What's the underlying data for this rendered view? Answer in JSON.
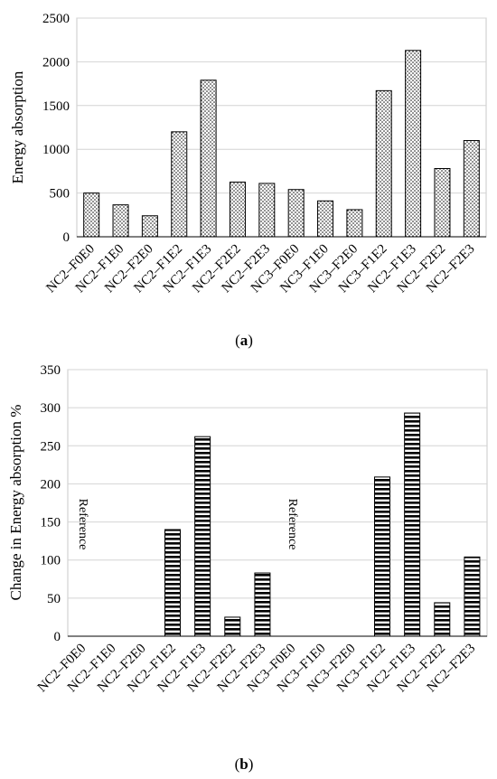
{
  "chart_data": [
    {
      "type": "bar",
      "panel_label": "a",
      "categories": [
        "NC2–F0E0",
        "NC2–F1E0",
        "NC2–F2E0",
        "NC2–F1E2",
        "NC2–F1E3",
        "NC2–F2E2",
        "NC2–F2E3",
        "NC3–F0E0",
        "NC3–F1E0",
        "NC3–F2E0",
        "NC3–F1E2",
        "NC2–F1E3",
        "NC2–F2E2",
        "NC2–F2E3"
      ],
      "values": [
        500,
        365,
        240,
        1200,
        1790,
        625,
        610,
        540,
        410,
        310,
        1670,
        2130,
        780,
        1100
      ],
      "ylabel": "Energy absorption",
      "xlabel": "",
      "ylim": [
        0,
        2500
      ],
      "yticks": [
        0,
        500,
        1000,
        1500,
        2000,
        2500
      ],
      "grid": true,
      "pattern": "dotted"
    },
    {
      "type": "bar",
      "panel_label": "b",
      "categories": [
        "NC2–F0E0",
        "NC2–F1E0",
        "NC2–F2E0",
        "NC2–F1E2",
        "NC2–F1E3",
        "NC2–F2E2",
        "NC2–F2E3",
        "NC3–F0E0",
        "NC3–F1E0",
        "NC3–F2E0",
        "NC3–F1E2",
        "NC2–F1E3",
        "NC2–F2E2",
        "NC2–F2E3"
      ],
      "values": [
        0,
        0,
        0,
        140,
        262,
        25,
        83,
        0,
        0,
        0,
        209,
        293,
        44,
        104
      ],
      "ylabel": "Change in Energy absorption %",
      "xlabel": "",
      "ylim": [
        0,
        350
      ],
      "yticks": [
        0,
        50,
        100,
        150,
        200,
        250,
        300,
        350
      ],
      "grid": true,
      "pattern": "horizontal-stripes",
      "annotations": [
        "Reference",
        "Reference"
      ]
    }
  ]
}
